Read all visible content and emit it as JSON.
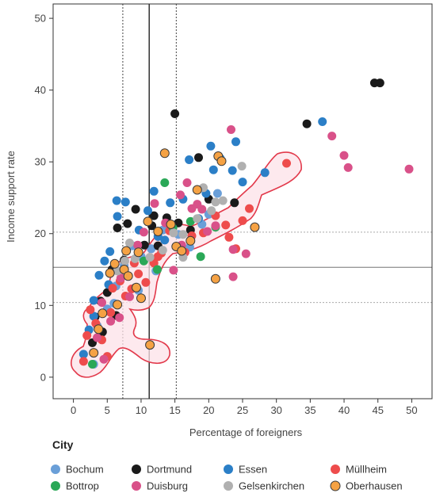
{
  "chart_data": {
    "type": "scatter",
    "xlabel": "Percentage of foreigners",
    "ylabel": "Income support rate",
    "xlim": [
      -3,
      53
    ],
    "ylim": [
      -3,
      52
    ],
    "x_ticks": [
      0,
      5,
      10,
      15,
      20,
      25,
      30,
      35,
      40,
      45,
      50
    ],
    "y_ticks": [
      0,
      10,
      20,
      30,
      40,
      50
    ],
    "grid": false,
    "reference_lines": {
      "x_solid": 11.2,
      "x_dotted": [
        7.3,
        15.2
      ],
      "y_solid": 15.3,
      "y_dotted": [
        10.4,
        20.2
      ]
    },
    "legend": {
      "title": "City",
      "placement": "bottom"
    },
    "series": [
      {
        "name": "Bochum",
        "color": "#6a9fd8",
        "outlined": false,
        "points": [
          [
            3,
            1.8
          ],
          [
            4,
            6.2
          ],
          [
            5,
            9.5
          ],
          [
            6.3,
            12.7
          ],
          [
            7.5,
            15.6
          ],
          [
            8.7,
            18.3
          ],
          [
            10,
            16.8
          ],
          [
            11.5,
            17.9
          ],
          [
            13.2,
            20.5
          ],
          [
            15.5,
            19.9
          ],
          [
            17.2,
            18.1
          ],
          [
            19,
            21.3
          ],
          [
            20,
            22.7
          ],
          [
            21.3,
            25.6
          ],
          [
            12.2,
            14.8
          ],
          [
            9.6,
            12.1
          ],
          [
            6,
            10.3
          ],
          [
            3.5,
            7.2
          ]
        ]
      },
      {
        "name": "Dortmund",
        "color": "#1a1a1a",
        "outlined": false,
        "points": [
          [
            2.8,
            4.8
          ],
          [
            3.2,
            8.4
          ],
          [
            4,
            10.6
          ],
          [
            5,
            11.8
          ],
          [
            5.7,
            15
          ],
          [
            6.5,
            20.8
          ],
          [
            7.5,
            16.3
          ],
          [
            8,
            21.4
          ],
          [
            9.2,
            23.4
          ],
          [
            10.5,
            18.4
          ],
          [
            11.6,
            21.1
          ],
          [
            12.5,
            18.3
          ],
          [
            13.8,
            22.2
          ],
          [
            15,
            36.7
          ],
          [
            15.5,
            21.5
          ],
          [
            17.3,
            20.5
          ],
          [
            18.5,
            30.6
          ],
          [
            20,
            24.8
          ],
          [
            23.8,
            24.3
          ],
          [
            34.5,
            35.3
          ],
          [
            44.5,
            41
          ],
          [
            45.3,
            41
          ],
          [
            9.2,
            12.5
          ],
          [
            4.3,
            6.3
          ],
          [
            6.3,
            8.6
          ],
          [
            11.9,
            22.5
          ]
        ]
      },
      {
        "name": "Essen",
        "color": "#2b7fc7",
        "outlined": false,
        "points": [
          [
            1.5,
            3.2
          ],
          [
            2.3,
            6.6
          ],
          [
            3,
            10.7
          ],
          [
            3.8,
            14.2
          ],
          [
            4.6,
            16.2
          ],
          [
            5.4,
            17.5
          ],
          [
            6.5,
            22.4
          ],
          [
            7.7,
            24.4
          ],
          [
            9.7,
            20.5
          ],
          [
            11,
            23.2
          ],
          [
            11.9,
            25.9
          ],
          [
            12.5,
            19.6
          ],
          [
            13.5,
            19.1
          ],
          [
            14.3,
            24.3
          ],
          [
            16.2,
            24.8
          ],
          [
            17.1,
            30.3
          ],
          [
            18.5,
            22.1
          ],
          [
            19.6,
            25.6
          ],
          [
            20.3,
            32.2
          ],
          [
            20.7,
            28.9
          ],
          [
            21.7,
            30.5
          ],
          [
            23.5,
            28.8
          ],
          [
            24,
            32.8
          ],
          [
            25,
            27.2
          ],
          [
            28.3,
            28.5
          ],
          [
            36.8,
            35.6
          ],
          [
            6.4,
            24.6
          ],
          [
            5.2,
            12.9
          ],
          [
            3,
            8.5
          ]
        ]
      },
      {
        "name": "Müllheim",
        "color": "#ee4c4c",
        "outlined": false,
        "points": [
          [
            1.5,
            2.2
          ],
          [
            2,
            5.8
          ],
          [
            2.5,
            9.4
          ],
          [
            3.3,
            7.5
          ],
          [
            4.2,
            5.2
          ],
          [
            5.5,
            9
          ],
          [
            5.8,
            12.4
          ],
          [
            6.9,
            13.4
          ],
          [
            8.6,
            12.3
          ],
          [
            9.6,
            14.4
          ],
          [
            10.7,
            13.2
          ],
          [
            11.9,
            15.9
          ],
          [
            13,
            17.3
          ],
          [
            14.2,
            20.4
          ],
          [
            15.5,
            18.2
          ],
          [
            16.5,
            17.4
          ],
          [
            17.5,
            19.7
          ],
          [
            19.2,
            20.1
          ],
          [
            21,
            22.5
          ],
          [
            22.5,
            21.2
          ],
          [
            23,
            19.5
          ],
          [
            24,
            17.9
          ],
          [
            25,
            21.8
          ],
          [
            26,
            23.5
          ],
          [
            31.5,
            29.8
          ],
          [
            7.7,
            11.3
          ],
          [
            9,
            15.9
          ],
          [
            5,
            2.9
          ],
          [
            12.5,
            16.8
          ]
        ]
      },
      {
        "name": "Bottrop",
        "color": "#2aa857",
        "outlined": false,
        "points": [
          [
            2.8,
            1.8
          ],
          [
            12.4,
            15
          ],
          [
            13.5,
            27.1
          ],
          [
            14.7,
            20.8
          ],
          [
            17.3,
            21.7
          ],
          [
            18.8,
            16.8
          ],
          [
            21,
            20.9
          ],
          [
            10.4,
            16.2
          ]
        ]
      },
      {
        "name": "Duisburg",
        "color": "#d95189",
        "outlined": false,
        "points": [
          [
            4.5,
            2.5
          ],
          [
            5.5,
            7.8
          ],
          [
            7,
            13.8
          ],
          [
            9.5,
            18.4
          ],
          [
            10.4,
            20.2
          ],
          [
            12,
            24.2
          ],
          [
            13.6,
            21.5
          ],
          [
            14.8,
            14.9
          ],
          [
            15.8,
            25.4
          ],
          [
            16.8,
            27.1
          ],
          [
            17.5,
            23.5
          ],
          [
            19,
            23.4
          ],
          [
            19.8,
            20.3
          ],
          [
            21,
            21.1
          ],
          [
            23.3,
            34.5
          ],
          [
            23.6,
            17.8
          ],
          [
            23.6,
            14
          ],
          [
            25.5,
            17.2
          ],
          [
            38.2,
            33.6
          ],
          [
            40,
            30.9
          ],
          [
            40.6,
            29.2
          ],
          [
            49.6,
            29
          ],
          [
            18.3,
            24.1
          ],
          [
            6.8,
            8.3
          ],
          [
            8.3,
            11.2
          ],
          [
            4.2,
            10.4
          ],
          [
            3.5,
            5.5
          ],
          [
            16,
            18.4
          ]
        ]
      },
      {
        "name": "Gelsenkirchen",
        "color": "#b0b0b0",
        "outlined": false,
        "points": [
          [
            6.5,
            14.8
          ],
          [
            8.3,
            18.7
          ],
          [
            11.3,
            16.7
          ],
          [
            13.2,
            17.7
          ],
          [
            14.8,
            20.1
          ],
          [
            16.2,
            19.9
          ],
          [
            18.3,
            22.1
          ],
          [
            19.2,
            26.4
          ],
          [
            20.4,
            23.2
          ],
          [
            21,
            24.4
          ],
          [
            22.1,
            24.6
          ],
          [
            24.9,
            29.4
          ],
          [
            16.2,
            16.7
          ],
          [
            9.1,
            16.5
          ],
          [
            7.6,
            16.2
          ]
        ]
      },
      {
        "name": "Oberhausen",
        "color": "#f5a244",
        "outlined": true,
        "points": [
          [
            3,
            3.4
          ],
          [
            3.7,
            6.7
          ],
          [
            4.3,
            8.9
          ],
          [
            5.4,
            14.5
          ],
          [
            6.1,
            15.8
          ],
          [
            7.5,
            15
          ],
          [
            7.8,
            17.6
          ],
          [
            8.1,
            14.1
          ],
          [
            9.3,
            12.5
          ],
          [
            9.6,
            17.4
          ],
          [
            11,
            21.7
          ],
          [
            12.5,
            20.3
          ],
          [
            13.5,
            31.2
          ],
          [
            14.4,
            21.3
          ],
          [
            15.2,
            18.2
          ],
          [
            16,
            17.6
          ],
          [
            17.3,
            19
          ],
          [
            18.3,
            26.1
          ],
          [
            21,
            13.7
          ],
          [
            21.4,
            30.8
          ],
          [
            21.9,
            30.1
          ],
          [
            26.8,
            20.9
          ],
          [
            11.3,
            4.5
          ],
          [
            6.5,
            10.1
          ],
          [
            10,
            11
          ]
        ]
      }
    ]
  }
}
